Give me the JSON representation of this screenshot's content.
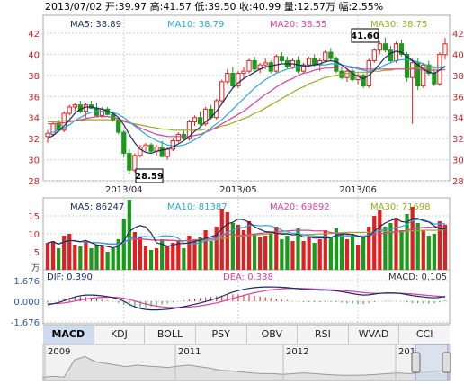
{
  "header": {
    "date": "2013/07/02",
    "open_label": "开:",
    "open": "39.97",
    "high_label": "高:",
    "high": "41.57",
    "low_label": "低:",
    "low": "39.50",
    "close_label": "收:",
    "close": "40.99",
    "volume_label": "量:",
    "volume": "12.57万",
    "change_label": "幅:",
    "change": "2.55%"
  },
  "colors": {
    "up": "#e02020",
    "down": "#1a9a1a",
    "ma5": "#1c2b63",
    "ma10": "#2aa7d8",
    "ma20": "#d9409f",
    "ma30": "#9aaa22",
    "grid": "#d0d0d0",
    "axis_text": "#cc2222"
  },
  "price_legend": {
    "ma5": "MA5: 38.89",
    "ma10": "MA10: 38.79",
    "ma20": "MA20: 38.55",
    "ma30": "MA30: 38.75"
  },
  "volume_legend": {
    "ma5": "MA5: 86247",
    "ma10": "MA10: 81387",
    "ma20": "MA20: 69892",
    "ma30": "MA30: 71698"
  },
  "macd_legend": {
    "dif": "DIF: 0.390",
    "dea": "DEA: 0.338",
    "macd": "MACD: 0.105"
  },
  "annotations": {
    "high_marker": "41.60",
    "low_marker": "28.59",
    "vol_unit": "万"
  },
  "tabs": [
    "MACD",
    "KDJ",
    "BOLL",
    "PSY",
    "OBV",
    "RSI",
    "WVAD",
    "CCI"
  ],
  "active_tab": "MACD",
  "navigator": {
    "year_labels": [
      "2009",
      "2011",
      "2012",
      "201"
    ]
  },
  "chart_data": [
    {
      "type": "candlestick",
      "title": "",
      "xlabel": "",
      "ylabel": "",
      "ylim": [
        28,
        42
      ],
      "y_ticks": [
        28,
        30,
        32,
        34,
        36,
        38,
        40,
        42
      ],
      "x_tick_labels": [
        {
          "index": 14,
          "label": "2013/04"
        },
        {
          "index": 35,
          "label": "2013/05"
        },
        {
          "index": 57,
          "label": "2013/06"
        }
      ],
      "candles": [
        [
          32.2,
          32.8,
          31.6,
          32.5
        ],
        [
          32.4,
          33.6,
          32.2,
          33.4
        ],
        [
          33.4,
          33.8,
          32.6,
          32.8
        ],
        [
          32.8,
          34.6,
          32.6,
          34.4
        ],
        [
          34.4,
          35.2,
          34.2,
          35.0
        ],
        [
          35.0,
          35.4,
          34.6,
          35.2
        ],
        [
          35.2,
          35.6,
          34.4,
          34.6
        ],
        [
          34.6,
          35.4,
          34.0,
          35.2
        ],
        [
          35.2,
          35.6,
          34.8,
          34.9
        ],
        [
          34.9,
          35.4,
          34.0,
          34.2
        ],
        [
          34.2,
          35.0,
          34.0,
          34.8
        ],
        [
          34.8,
          35.0,
          34.2,
          34.3
        ],
        [
          34.3,
          34.6,
          33.6,
          33.8
        ],
        [
          33.8,
          34.0,
          32.4,
          32.6
        ],
        [
          32.6,
          32.8,
          30.2,
          30.6
        ],
        [
          30.6,
          31.0,
          28.6,
          29.0
        ],
        [
          29.0,
          30.6,
          28.8,
          30.4
        ],
        [
          30.4,
          31.4,
          30.2,
          31.2
        ],
        [
          31.2,
          31.6,
          30.8,
          31.4
        ],
        [
          31.4,
          31.6,
          30.6,
          30.8
        ],
        [
          30.8,
          31.4,
          30.4,
          31.2
        ],
        [
          31.2,
          31.8,
          30.2,
          30.3
        ],
        [
          30.3,
          31.2,
          30.0,
          31.0
        ],
        [
          31.0,
          32.0,
          30.8,
          31.8
        ],
        [
          31.8,
          32.6,
          31.6,
          32.4
        ],
        [
          32.4,
          32.8,
          31.8,
          32.0
        ],
        [
          32.0,
          33.8,
          31.8,
          33.6
        ],
        [
          33.6,
          34.2,
          33.2,
          34.0
        ],
        [
          34.0,
          34.6,
          33.2,
          33.4
        ],
        [
          33.4,
          35.0,
          33.2,
          34.8
        ],
        [
          34.8,
          35.2,
          33.8,
          34.0
        ],
        [
          34.0,
          35.8,
          33.8,
          35.6
        ],
        [
          35.6,
          37.6,
          35.4,
          37.4
        ],
        [
          37.4,
          38.6,
          37.2,
          38.2
        ],
        [
          38.2,
          38.8,
          36.8,
          37.0
        ],
        [
          37.0,
          38.4,
          36.8,
          38.2
        ],
        [
          38.2,
          38.8,
          37.6,
          38.4
        ],
        [
          38.4,
          39.6,
          38.2,
          39.4
        ],
        [
          39.4,
          39.8,
          38.4,
          38.6
        ],
        [
          38.6,
          39.2,
          38.2,
          39.0
        ],
        [
          39.0,
          39.6,
          38.6,
          39.2
        ],
        [
          39.2,
          39.4,
          38.2,
          38.4
        ],
        [
          38.4,
          40.0,
          38.2,
          39.8
        ],
        [
          39.8,
          40.2,
          39.2,
          39.4
        ],
        [
          39.4,
          39.8,
          38.6,
          38.8
        ],
        [
          38.8,
          39.6,
          38.6,
          39.4
        ],
        [
          39.4,
          39.8,
          38.2,
          38.4
        ],
        [
          38.4,
          39.2,
          38.2,
          39.0
        ],
        [
          39.0,
          39.8,
          38.8,
          39.6
        ],
        [
          39.6,
          40.0,
          38.8,
          39.0
        ],
        [
          39.0,
          39.6,
          38.4,
          39.4
        ],
        [
          39.4,
          40.4,
          39.2,
          40.2
        ],
        [
          40.2,
          40.6,
          39.4,
          39.6
        ],
        [
          39.6,
          39.8,
          38.2,
          38.4
        ],
        [
          38.4,
          38.8,
          37.6,
          37.8
        ],
        [
          37.8,
          38.6,
          37.4,
          38.4
        ],
        [
          38.4,
          38.6,
          37.4,
          37.6
        ],
        [
          37.6,
          38.2,
          37.2,
          38.0
        ],
        [
          38.0,
          38.2,
          36.8,
          37.0
        ],
        [
          37.0,
          39.6,
          36.8,
          39.4
        ],
        [
          39.4,
          40.6,
          39.2,
          40.4
        ],
        [
          40.4,
          41.2,
          40.0,
          41.0
        ],
        [
          41.0,
          41.6,
          40.2,
          40.4
        ],
        [
          40.4,
          40.8,
          39.2,
          39.4
        ],
        [
          39.4,
          41.2,
          39.2,
          41.0
        ],
        [
          41.0,
          41.4,
          39.8,
          40.0
        ],
        [
          40.0,
          40.2,
          37.4,
          37.8
        ],
        [
          37.8,
          39.6,
          33.4,
          39.2
        ],
        [
          39.2,
          39.6,
          36.6,
          37.0
        ],
        [
          37.0,
          39.2,
          36.8,
          39.0
        ],
        [
          39.0,
          39.4,
          38.0,
          38.2
        ],
        [
          38.2,
          38.6,
          37.0,
          37.2
        ],
        [
          37.2,
          40.2,
          37.0,
          40.0
        ],
        [
          39.97,
          41.57,
          39.5,
          40.99
        ]
      ],
      "ma_lines": {
        "ma5": [
          32.0,
          32.3,
          32.7,
          33.2,
          33.8,
          34.4,
          34.8,
          35.0,
          35.0,
          34.9,
          34.8,
          34.6,
          34.4,
          34.0,
          33.3,
          32.4,
          31.6,
          31.0,
          30.7,
          30.6,
          30.8,
          30.9,
          31.0,
          31.2,
          31.5,
          31.8,
          32.2,
          32.7,
          33.1,
          33.6,
          34.0,
          34.6,
          35.3,
          36.1,
          36.8,
          37.3,
          37.7,
          38.0,
          38.3,
          38.6,
          38.8,
          38.9,
          39.0,
          39.1,
          39.1,
          39.1,
          39.0,
          38.9,
          38.9,
          39.0,
          39.1,
          39.3,
          39.4,
          39.3,
          39.0,
          38.6,
          38.2,
          37.9,
          37.7,
          38.0,
          38.5,
          39.1,
          39.7,
          40.1,
          40.3,
          40.2,
          39.8,
          39.4,
          39.0,
          38.6,
          38.3,
          38.2,
          38.5,
          38.89
        ],
        "ma10": [
          32.5,
          32.6,
          32.8,
          33.0,
          33.3,
          33.7,
          34.0,
          34.3,
          34.5,
          34.6,
          34.6,
          34.6,
          34.5,
          34.3,
          34.0,
          33.6,
          33.2,
          32.8,
          32.4,
          32.1,
          31.8,
          31.6,
          31.4,
          31.3,
          31.3,
          31.4,
          31.6,
          31.9,
          32.2,
          32.6,
          33.0,
          33.4,
          33.8,
          34.3,
          34.8,
          35.3,
          35.8,
          36.3,
          36.8,
          37.2,
          37.6,
          37.9,
          38.2,
          38.4,
          38.6,
          38.7,
          38.8,
          38.9,
          38.9,
          39.0,
          39.0,
          39.0,
          39.1,
          39.1,
          39.0,
          38.9,
          38.8,
          38.6,
          38.5,
          38.4,
          38.5,
          38.7,
          39.0,
          39.2,
          39.4,
          39.5,
          39.5,
          39.4,
          39.3,
          39.1,
          38.9,
          38.8,
          38.8,
          38.79
        ],
        "ma20": [
          33.4,
          33.4,
          33.5,
          33.5,
          33.6,
          33.7,
          33.8,
          33.9,
          34.0,
          34.1,
          34.1,
          34.1,
          34.0,
          33.9,
          33.7,
          33.5,
          33.3,
          33.0,
          32.8,
          32.6,
          32.4,
          32.3,
          32.2,
          32.2,
          32.2,
          32.2,
          32.2,
          32.3,
          32.4,
          32.6,
          32.8,
          33.1,
          33.4,
          33.7,
          34.0,
          34.3,
          34.6,
          35.0,
          35.4,
          35.8,
          36.2,
          36.5,
          36.9,
          37.2,
          37.5,
          37.7,
          38.0,
          38.2,
          38.3,
          38.5,
          38.6,
          38.7,
          38.7,
          38.8,
          38.8,
          38.8,
          38.7,
          38.7,
          38.6,
          38.6,
          38.6,
          38.6,
          38.6,
          38.6,
          38.6,
          38.6,
          38.6,
          38.6,
          38.6,
          38.5,
          38.5,
          38.5,
          38.5,
          38.55
        ],
        "ma30": [
          33.6,
          33.6,
          33.6,
          33.7,
          33.7,
          33.7,
          33.7,
          33.8,
          33.8,
          33.8,
          33.8,
          33.8,
          33.7,
          33.7,
          33.6,
          33.5,
          33.4,
          33.3,
          33.2,
          33.1,
          33.0,
          32.9,
          32.9,
          32.8,
          32.8,
          32.8,
          32.8,
          32.8,
          32.8,
          32.9,
          32.9,
          33.0,
          33.2,
          33.3,
          33.5,
          33.7,
          33.9,
          34.1,
          34.4,
          34.6,
          34.9,
          35.2,
          35.5,
          35.8,
          36.1,
          36.4,
          36.7,
          36.9,
          37.2,
          37.4,
          37.6,
          37.8,
          37.9,
          38.0,
          38.1,
          38.2,
          38.2,
          38.3,
          38.3,
          38.3,
          38.4,
          38.4,
          38.5,
          38.5,
          38.6,
          38.6,
          38.6,
          38.7,
          38.7,
          38.7,
          38.7,
          38.7,
          38.7,
          38.75
        ]
      }
    },
    {
      "type": "bar",
      "title": "",
      "ylabel": "万",
      "ylim": [
        0,
        20
      ],
      "y_ticks": [
        5,
        10,
        15
      ],
      "volumes": [
        7.5,
        8.0,
        6.0,
        9.5,
        10.0,
        7.0,
        6.5,
        8.0,
        6.0,
        7.0,
        6.5,
        5.0,
        6.0,
        8.5,
        14.0,
        19.5,
        10.5,
        9.0,
        6.5,
        5.5,
        6.0,
        8.5,
        6.5,
        7.5,
        8.0,
        6.0,
        9.5,
        8.5,
        9.0,
        11.0,
        8.0,
        12.0,
        17.0,
        16.0,
        13.0,
        12.5,
        11.0,
        13.5,
        10.0,
        9.0,
        9.5,
        10.5,
        12.0,
        8.5,
        9.5,
        8.0,
        11.5,
        8.0,
        9.0,
        7.5,
        8.5,
        11.0,
        9.0,
        11.5,
        10.0,
        8.5,
        10.0,
        7.0,
        9.5,
        12.0,
        15.0,
        16.5,
        12.0,
        13.0,
        14.5,
        11.0,
        15.5,
        17.5,
        13.0,
        11.0,
        9.5,
        10.0,
        13.5,
        12.57
      ]
    },
    {
      "type": "line",
      "title": "",
      "ylim": [
        -1.676,
        1.676
      ],
      "y_ticks": [
        1.676,
        0.0,
        -1.676
      ],
      "dif": [
        -0.3,
        -0.2,
        -0.1,
        0.05,
        0.2,
        0.35,
        0.45,
        0.5,
        0.5,
        0.48,
        0.44,
        0.38,
        0.3,
        0.18,
        0.0,
        -0.25,
        -0.45,
        -0.58,
        -0.66,
        -0.7,
        -0.7,
        -0.68,
        -0.65,
        -0.6,
        -0.52,
        -0.44,
        -0.34,
        -0.24,
        -0.14,
        -0.02,
        0.1,
        0.24,
        0.4,
        0.58,
        0.74,
        0.86,
        0.96,
        1.04,
        1.1,
        1.14,
        1.16,
        1.16,
        1.15,
        1.13,
        1.1,
        1.06,
        1.02,
        0.98,
        0.95,
        0.92,
        0.9,
        0.9,
        0.88,
        0.84,
        0.78,
        0.7,
        0.62,
        0.55,
        0.5,
        0.52,
        0.58,
        0.64,
        0.68,
        0.68,
        0.66,
        0.62,
        0.54,
        0.46,
        0.4,
        0.35,
        0.3,
        0.28,
        0.32,
        0.39
      ],
      "dea": [
        -0.2,
        -0.2,
        -0.18,
        -0.13,
        -0.07,
        0.02,
        0.1,
        0.18,
        0.24,
        0.29,
        0.32,
        0.33,
        0.33,
        0.3,
        0.24,
        0.14,
        0.02,
        -0.1,
        -0.21,
        -0.31,
        -0.39,
        -0.45,
        -0.49,
        -0.51,
        -0.51,
        -0.5,
        -0.47,
        -0.42,
        -0.37,
        -0.3,
        -0.22,
        -0.13,
        -0.02,
        0.1,
        0.23,
        0.35,
        0.47,
        0.58,
        0.69,
        0.78,
        0.86,
        0.92,
        0.97,
        1.01,
        1.03,
        1.04,
        1.04,
        1.03,
        1.01,
        0.99,
        0.97,
        0.95,
        0.93,
        0.91,
        0.88,
        0.84,
        0.8,
        0.75,
        0.7,
        0.66,
        0.64,
        0.64,
        0.64,
        0.65,
        0.65,
        0.64,
        0.62,
        0.59,
        0.55,
        0.51,
        0.47,
        0.43,
        0.4,
        0.338
      ],
      "macd": [
        -0.2,
        0.0,
        0.16,
        0.36,
        0.54,
        0.66,
        0.7,
        0.64,
        0.52,
        0.38,
        0.24,
        0.1,
        -0.06,
        -0.24,
        -0.48,
        -0.78,
        -0.94,
        -0.96,
        -0.9,
        -0.78,
        -0.62,
        -0.46,
        -0.32,
        -0.18,
        -0.02,
        0.12,
        0.26,
        0.36,
        0.46,
        0.56,
        0.64,
        0.74,
        0.84,
        0.96,
        1.02,
        1.02,
        0.98,
        0.92,
        0.82,
        0.72,
        0.6,
        0.48,
        0.36,
        0.24,
        0.14,
        0.04,
        -0.04,
        -0.1,
        -0.12,
        -0.14,
        -0.14,
        -0.1,
        -0.1,
        -0.14,
        -0.2,
        -0.28,
        -0.36,
        -0.4,
        -0.4,
        -0.28,
        -0.12,
        0.0,
        0.08,
        0.06,
        0.02,
        -0.04,
        -0.16,
        -0.26,
        -0.3,
        -0.32,
        -0.34,
        -0.3,
        -0.16,
        0.105
      ]
    }
  ]
}
